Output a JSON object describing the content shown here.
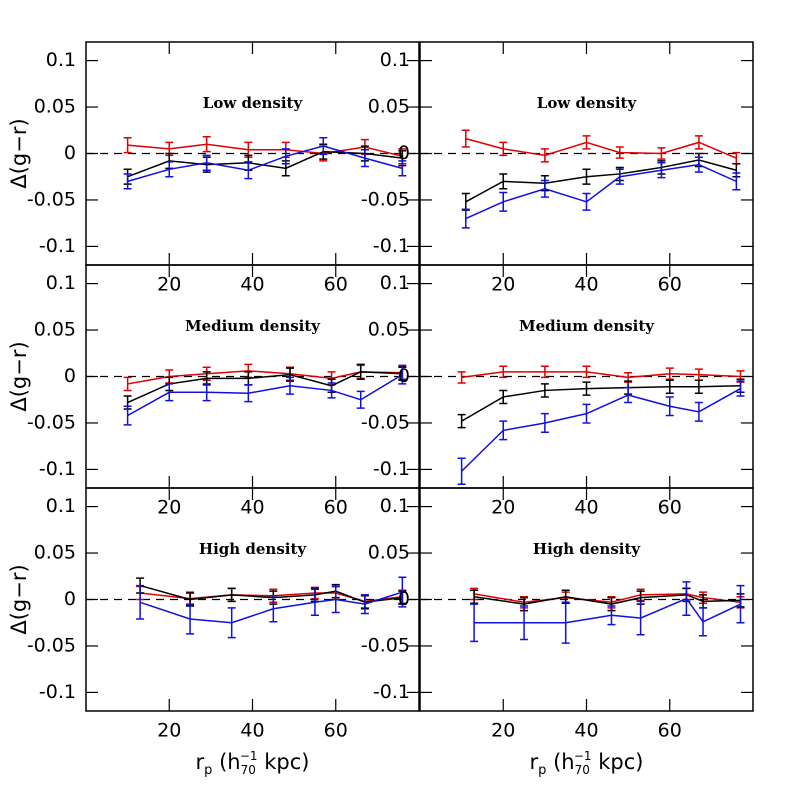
{
  "chart_data": [
    {
      "type": "line",
      "title": "Low density",
      "ylabel": "Δ(g−r)",
      "xlim": [
        0,
        80
      ],
      "xticks": [
        20,
        40,
        60
      ],
      "ylim": [
        -0.12,
        0.12
      ],
      "yticks": [
        -0.1,
        -0.05,
        0,
        0.05,
        0.1
      ],
      "hline": 0,
      "series": [
        {
          "color": "#e00000",
          "x": [
            10,
            20,
            29,
            39,
            48,
            57,
            67,
            76
          ],
          "values": [
            0.009,
            0.005,
            0.01,
            0.004,
            0.004,
            0.0,
            0.007,
            -0.003
          ],
          "errors": [
            0.008,
            0.007,
            0.008,
            0.008,
            0.008,
            0.008,
            0.008,
            0.008
          ]
        },
        {
          "color": "#000000",
          "x": [
            10,
            20,
            29,
            39,
            48,
            57,
            67,
            76
          ],
          "values": [
            -0.025,
            -0.008,
            -0.012,
            -0.01,
            -0.016,
            0.002,
            0.0,
            -0.005
          ],
          "errors": [
            0.008,
            0.008,
            0.008,
            0.008,
            0.008,
            0.008,
            0.008,
            0.008
          ]
        },
        {
          "color": "#1010e0",
          "x": [
            10,
            20,
            29,
            39,
            48,
            57,
            67,
            76
          ],
          "values": [
            -0.03,
            -0.017,
            -0.01,
            -0.018,
            -0.003,
            0.008,
            -0.005,
            -0.016
          ],
          "errors": [
            0.008,
            0.008,
            0.008,
            0.009,
            0.008,
            0.009,
            0.009,
            0.008
          ]
        }
      ]
    },
    {
      "type": "line",
      "title": "Low density",
      "xlim": [
        0,
        80
      ],
      "xticks": [
        20,
        40,
        60
      ],
      "ylim": [
        -0.12,
        0.12
      ],
      "yticks": [
        -0.1,
        -0.05,
        0,
        0.05,
        0.1
      ],
      "hline": 0,
      "series": [
        {
          "color": "#e00000",
          "x": [
            11,
            20,
            30,
            40,
            48,
            58,
            67,
            76
          ],
          "values": [
            0.016,
            0.005,
            -0.002,
            0.012,
            0.001,
            0.0,
            0.012,
            -0.005
          ],
          "errors": [
            0.009,
            0.007,
            0.007,
            0.007,
            0.006,
            0.006,
            0.007,
            0.006
          ]
        },
        {
          "color": "#000000",
          "x": [
            11,
            20,
            30,
            40,
            48,
            58,
            67,
            76
          ],
          "values": [
            -0.052,
            -0.03,
            -0.032,
            -0.025,
            -0.022,
            -0.015,
            -0.007,
            -0.018
          ],
          "errors": [
            0.009,
            0.008,
            0.008,
            0.008,
            0.007,
            0.007,
            0.007,
            0.007
          ]
        },
        {
          "color": "#1010e0",
          "x": [
            11,
            20,
            30,
            40,
            48,
            58,
            67,
            76
          ],
          "values": [
            -0.07,
            -0.052,
            -0.038,
            -0.052,
            -0.025,
            -0.018,
            -0.012,
            -0.03
          ],
          "errors": [
            0.01,
            0.01,
            0.009,
            0.009,
            0.008,
            0.008,
            0.008,
            0.009
          ]
        }
      ]
    },
    {
      "type": "line",
      "title": "Medium density",
      "ylabel": "Δ(g−r)",
      "xlim": [
        0,
        80
      ],
      "xticks": [
        20,
        40,
        60
      ],
      "ylim": [
        -0.12,
        0.12
      ],
      "yticks": [
        -0.1,
        -0.05,
        0,
        0.05,
        0.1
      ],
      "hline": 0,
      "series": [
        {
          "color": "#e00000",
          "x": [
            10,
            20,
            29,
            39,
            49,
            59,
            66,
            76
          ],
          "values": [
            -0.008,
            0.0,
            0.003,
            0.006,
            0.003,
            -0.002,
            0.005,
            0.004
          ],
          "errors": [
            0.007,
            0.007,
            0.007,
            0.007,
            0.007,
            0.007,
            0.007,
            0.007
          ]
        },
        {
          "color": "#000000",
          "x": [
            10,
            20,
            29,
            39,
            49,
            59,
            66,
            76
          ],
          "values": [
            -0.028,
            -0.008,
            -0.002,
            -0.002,
            0.002,
            -0.01,
            0.005,
            0.003
          ],
          "errors": [
            0.007,
            0.007,
            0.007,
            0.007,
            0.007,
            0.007,
            0.008,
            0.007
          ]
        },
        {
          "color": "#1010e0",
          "x": [
            10,
            20,
            29,
            39,
            49,
            59,
            66,
            76
          ],
          "values": [
            -0.042,
            -0.017,
            -0.017,
            -0.018,
            -0.01,
            -0.015,
            -0.025,
            0.002
          ],
          "errors": [
            0.01,
            0.009,
            0.009,
            0.009,
            0.009,
            0.008,
            0.009,
            0.01
          ]
        }
      ]
    },
    {
      "type": "line",
      "title": "Medium density",
      "xlim": [
        0,
        80
      ],
      "xticks": [
        20,
        40,
        60
      ],
      "ylim": [
        -0.12,
        0.12
      ],
      "yticks": [
        -0.1,
        -0.05,
        0,
        0.05,
        0.1
      ],
      "hline": 0,
      "series": [
        {
          "color": "#e00000",
          "x": [
            10,
            20,
            30,
            40,
            50,
            60,
            67,
            77
          ],
          "values": [
            -0.001,
            0.005,
            0.005,
            0.005,
            -0.001,
            0.003,
            0.002,
            0.0
          ],
          "errors": [
            0.006,
            0.006,
            0.006,
            0.006,
            0.005,
            0.006,
            0.006,
            0.006
          ]
        },
        {
          "color": "#000000",
          "x": [
            10,
            20,
            30,
            40,
            50,
            60,
            67,
            77
          ],
          "values": [
            -0.048,
            -0.022,
            -0.015,
            -0.013,
            -0.012,
            -0.011,
            -0.011,
            -0.01
          ],
          "errors": [
            0.007,
            0.007,
            0.007,
            0.007,
            0.007,
            0.007,
            0.007,
            0.007
          ]
        },
        {
          "color": "#1010e0",
          "x": [
            10,
            20,
            30,
            40,
            50,
            60,
            67,
            77
          ],
          "values": [
            -0.102,
            -0.058,
            -0.05,
            -0.04,
            -0.02,
            -0.032,
            -0.038,
            -0.013
          ],
          "errors": [
            0.014,
            0.01,
            0.01,
            0.01,
            0.008,
            0.01,
            0.01,
            0.008
          ]
        }
      ]
    },
    {
      "type": "line",
      "title": "High density",
      "ylabel": "Δ(g−r)",
      "xlabel": [
        "r",
        "p",
        " (h",
        "70",
        "−1",
        " kpc)"
      ],
      "xlim": [
        0,
        80
      ],
      "xticks": [
        20,
        40,
        60
      ],
      "ylim": [
        -0.12,
        0.12
      ],
      "yticks": [
        -0.1,
        -0.05,
        0,
        0.05,
        0.1
      ],
      "hline": 0,
      "series": [
        {
          "color": "#e00000",
          "x": [
            13,
            25,
            35,
            45,
            55,
            60,
            67,
            76
          ],
          "values": [
            0.007,
            0.001,
            0.005,
            0.004,
            0.007,
            0.007,
            -0.002,
            0.003
          ],
          "errors": [
            0.007,
            0.007,
            0.007,
            0.007,
            0.006,
            0.007,
            0.007,
            0.007
          ]
        },
        {
          "color": "#000000",
          "x": [
            13,
            25,
            35,
            45,
            55,
            60,
            67,
            76
          ],
          "values": [
            0.015,
            0.0,
            0.005,
            0.002,
            0.005,
            0.009,
            -0.003,
            0.002
          ],
          "errors": [
            0.008,
            0.007,
            0.007,
            0.007,
            0.007,
            0.007,
            0.007,
            0.007
          ]
        },
        {
          "color": "#1010e0",
          "x": [
            13,
            25,
            35,
            45,
            55,
            60,
            67,
            76
          ],
          "values": [
            -0.003,
            -0.021,
            -0.025,
            -0.01,
            -0.003,
            0.0,
            -0.005,
            0.008
          ],
          "errors": [
            0.018,
            0.016,
            0.016,
            0.014,
            0.014,
            0.014,
            0.01,
            0.016
          ]
        }
      ]
    },
    {
      "type": "line",
      "title": "High density",
      "xlabel": [
        "r",
        "p",
        " (h",
        "70",
        "−1",
        " kpc)"
      ],
      "xlim": [
        0,
        80
      ],
      "xticks": [
        20,
        40,
        60
      ],
      "ylim": [
        -0.12,
        0.12
      ],
      "yticks": [
        -0.1,
        -0.05,
        0,
        0.05,
        0.1
      ],
      "hline": 0,
      "series": [
        {
          "color": "#e00000",
          "x": [
            13,
            25,
            35,
            46,
            53,
            64,
            68,
            77
          ],
          "values": [
            0.006,
            -0.003,
            0.002,
            -0.003,
            0.005,
            0.006,
            0.002,
            -0.003
          ],
          "errors": [
            0.006,
            0.006,
            0.006,
            0.006,
            0.006,
            0.006,
            0.006,
            0.006
          ]
        },
        {
          "color": "#000000",
          "x": [
            13,
            25,
            35,
            46,
            53,
            64,
            68,
            77
          ],
          "values": [
            0.003,
            -0.005,
            0.003,
            -0.005,
            0.002,
            0.005,
            -0.002,
            -0.001
          ],
          "errors": [
            0.007,
            0.007,
            0.007,
            0.007,
            0.007,
            0.007,
            0.007,
            0.007
          ]
        },
        {
          "color": "#1010e0",
          "x": [
            13,
            25,
            35,
            46,
            53,
            64,
            68,
            77
          ],
          "values": [
            -0.025,
            -0.025,
            -0.025,
            -0.017,
            -0.02,
            0.001,
            -0.024,
            -0.005
          ],
          "errors": [
            0.02,
            0.018,
            0.022,
            0.01,
            0.018,
            0.018,
            0.015,
            0.02
          ]
        }
      ]
    }
  ]
}
